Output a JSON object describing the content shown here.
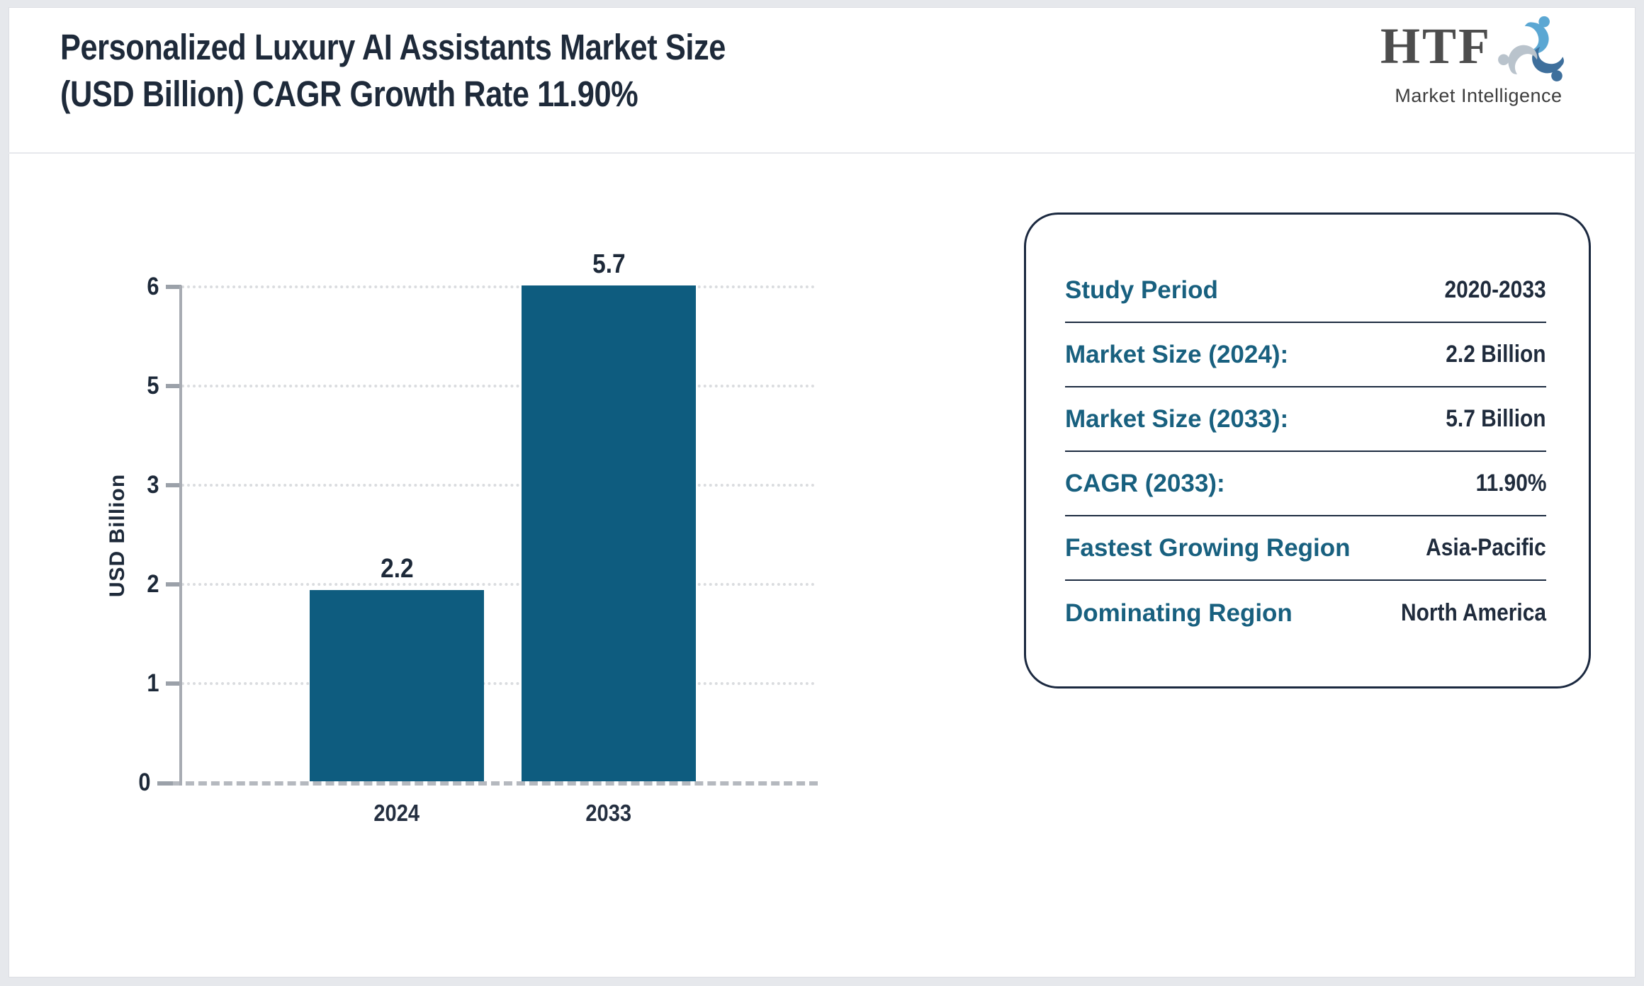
{
  "header": {
    "title_line1": "Personalized Luxury AI Assistants Market Size",
    "title_line2": "(USD Billion) CAGR Growth Rate 11.90%"
  },
  "logo": {
    "name": "HTF",
    "tagline": "Market Intelligence"
  },
  "chart_data": {
    "type": "bar",
    "title": "Personalized Luxury AI Assistants Market Size (USD Billion) CAGR Growth Rate 11.90%",
    "categories": [
      "2024",
      "2033"
    ],
    "values": [
      2.2,
      5.7
    ],
    "bar_labels": [
      "2.2",
      "5.7"
    ],
    "xlabel": "",
    "ylabel": "USD Billion",
    "ylim": [
      0,
      6
    ],
    "ytick_labels_top_to_bottom": [
      "6",
      "5",
      "3",
      "2",
      "1",
      "0"
    ],
    "grid": "horizontal-dotted",
    "legend": "none",
    "bar_color": "#0e5c7f"
  },
  "panel": {
    "rows": [
      {
        "label": "Study Period",
        "value": "2020-2033"
      },
      {
        "label": "Market Size (2024):",
        "value": "2.2 Billion"
      },
      {
        "label": "Market Size (2033):",
        "value": "5.7 Billion"
      },
      {
        "label": "CAGR (2033):",
        "value": "11.90%"
      },
      {
        "label": "Fastest Growing Region",
        "value": "Asia-Pacific"
      },
      {
        "label": "Dominating Region",
        "value": "North America"
      }
    ]
  },
  "colors": {
    "bar": "#0e5c7f",
    "label_teal": "#18607f",
    "text_navy": "#1d2939",
    "panel_border": "#1b2940"
  }
}
